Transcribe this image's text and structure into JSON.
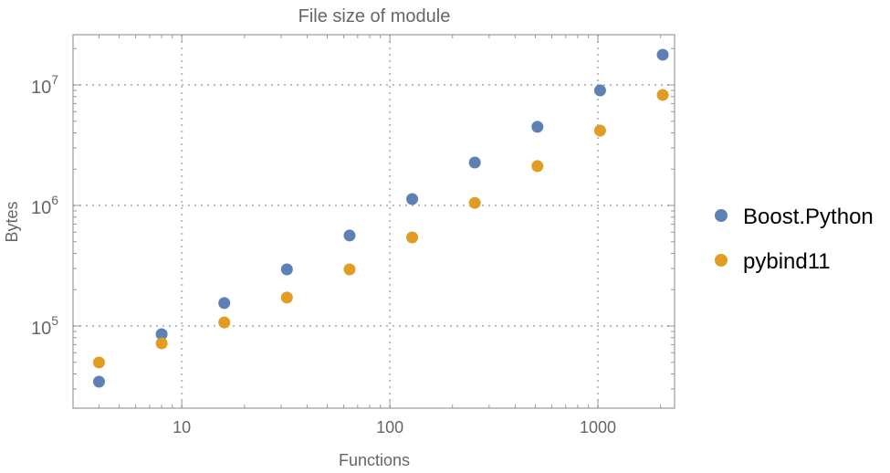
{
  "chart_data": {
    "type": "scatter",
    "title": "File size of module",
    "xlabel": "Functions",
    "ylabel": "Bytes",
    "xscale": "log",
    "yscale": "log",
    "xlim": [
      3.0,
      2335
    ],
    "ylim": [
      20800,
      26100000
    ],
    "grid": true,
    "legend_position": "right",
    "x_ticks": [
      {
        "value": 10,
        "label": "10"
      },
      {
        "value": 100,
        "label": "100"
      },
      {
        "value": 1000,
        "label": "1000"
      }
    ],
    "y_ticks": [
      {
        "value": 100000,
        "base": "10",
        "exp": "5"
      },
      {
        "value": 1000000,
        "base": "10",
        "exp": "6"
      },
      {
        "value": 10000000,
        "base": "10",
        "exp": "7"
      }
    ],
    "x": [
      4,
      8,
      16,
      32,
      64,
      128,
      256,
      512,
      1024,
      2048
    ],
    "series": [
      {
        "name": "Boost.Python",
        "color": "#5E81B5",
        "values": [
          34500,
          85500,
          155000,
          295000,
          563000,
          1130000,
          2270000,
          4490000,
          9000000,
          17800000
        ]
      },
      {
        "name": "pybind11",
        "color": "#E19C24",
        "values": [
          49800,
          71800,
          107000,
          172000,
          295000,
          543000,
          1050000,
          2120000,
          4180000,
          8260000
        ]
      }
    ]
  }
}
